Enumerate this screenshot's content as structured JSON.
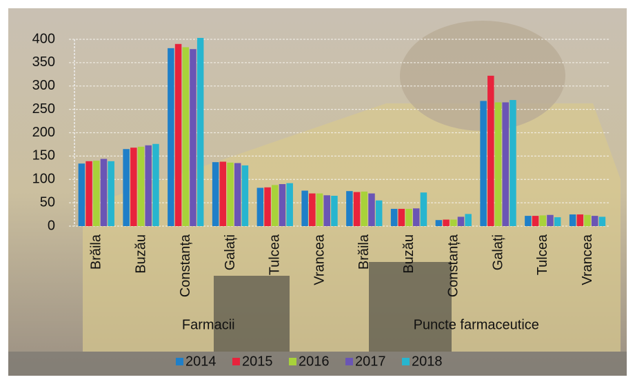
{
  "chart_data": {
    "type": "bar",
    "categories": [
      "Brăila",
      "Buzău",
      "Constanța",
      "Galați",
      "Tulcea",
      "Vrancea",
      "Brăila",
      "Buzău",
      "Constanța",
      "Galați",
      "Tulcea",
      "Vrancea"
    ],
    "groups": [
      "Farmacii",
      "Puncte farmaceutice"
    ],
    "series": [
      {
        "name": "2014",
        "color": "#1f7fc8",
        "values": [
          134,
          165,
          381,
          137,
          82,
          76,
          75,
          37,
          13,
          268,
          22,
          25
        ]
      },
      {
        "name": "2015",
        "color": "#e8233c",
        "values": [
          139,
          168,
          390,
          138,
          83,
          70,
          73,
          37,
          14,
          322,
          22,
          25
        ]
      },
      {
        "name": "2016",
        "color": "#a8d23a",
        "values": [
          140,
          170,
          383,
          136,
          88,
          70,
          74,
          37,
          14,
          265,
          23,
          24
        ]
      },
      {
        "name": "2017",
        "color": "#6a55b5",
        "values": [
          144,
          173,
          379,
          135,
          90,
          66,
          70,
          38,
          20,
          265,
          24,
          22
        ]
      },
      {
        "name": "2018",
        "color": "#27b5cf",
        "values": [
          139,
          176,
          403,
          130,
          92,
          65,
          55,
          72,
          26,
          270,
          19,
          20
        ]
      }
    ],
    "ylim": [
      0,
      400
    ],
    "yticks": [
      0,
      50,
      100,
      150,
      200,
      250,
      300,
      350,
      400
    ],
    "grid": true
  }
}
